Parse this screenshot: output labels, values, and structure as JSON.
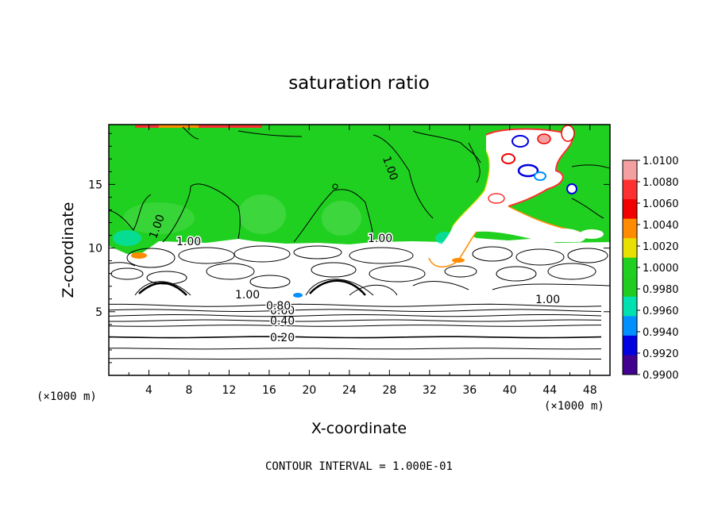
{
  "chart_data": {
    "type": "heatmap",
    "title": "saturation ratio",
    "xlabel": "X-coordinate",
    "ylabel": "Z-coordinate",
    "x_unit": "(×1000 m)",
    "y_unit": "(×1000 m)",
    "xlim": [
      0,
      50
    ],
    "ylim": [
      0,
      19.7
    ],
    "x_ticks": [
      "4",
      "8",
      "12",
      "16",
      "20",
      "24",
      "28",
      "32",
      "36",
      "40",
      "44",
      "48"
    ],
    "y_ticks": [
      "5",
      "10",
      "15"
    ],
    "colorbar": {
      "labels": [
        "1.0100",
        "1.0080",
        "1.0060",
        "1.0040",
        "1.0020",
        "1.0000",
        "0.9980",
        "0.9960",
        "0.9940",
        "0.9920",
        "0.9900"
      ],
      "colors": [
        "#f5a0a0",
        "#ff3030",
        "#f00000",
        "#ff8c00",
        "#e8e000",
        "#20d020",
        "#20cc20",
        "#00e0b0",
        "#0090ff",
        "#0000e0",
        "#400090"
      ]
    },
    "contour_labels": [
      "1.00",
      "1.00",
      "1.00",
      "1.00",
      "1.00",
      "1.00",
      "0.80",
      "0.60",
      "0.40",
      "0.20"
    ],
    "baseline_contours": [
      {
        "z": 1.3,
        "label": ""
      },
      {
        "z": 2.1,
        "label": ""
      },
      {
        "z": 3.0,
        "label": "0.20"
      },
      {
        "z": 3.9,
        "label": ""
      },
      {
        "z": 4.3,
        "label": "0.40"
      },
      {
        "z": 4.7,
        "label": ""
      },
      {
        "z": 5.1,
        "label": "0.60"
      },
      {
        "z": 5.5,
        "label": "0.80"
      }
    ],
    "cloud_top_z": 10.7,
    "footnote": "CONTOUR INTERVAL = 1.000E-01"
  }
}
